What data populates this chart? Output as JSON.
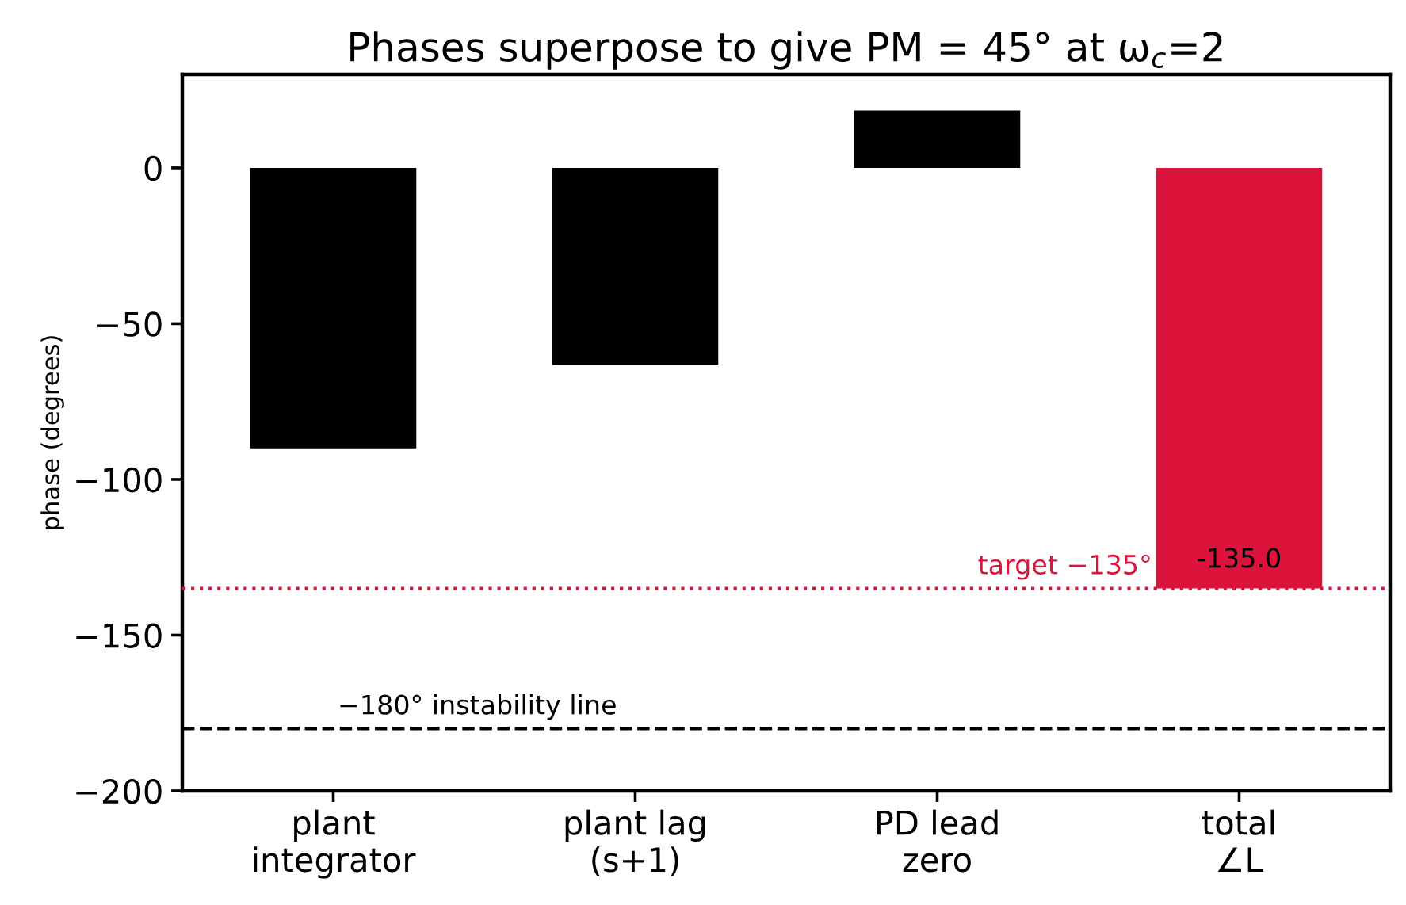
{
  "chart_data": {
    "type": "bar",
    "title": "Phases superpose to give PM = 45° at ω$_{c}$=2",
    "ylabel": "phase (degrees)",
    "categories": [
      "plant\nintegrator",
      "plant lag\n(s+1)",
      "PD lead\nzero",
      "total\n∠L"
    ],
    "values": [
      -90,
      -63.4,
      18.4,
      -135.0
    ],
    "colors": [
      "#000000",
      "#000000",
      "#000000",
      "#dc143c"
    ],
    "value_labels": [
      null,
      null,
      null,
      "-135.0"
    ],
    "ylim": [
      -200,
      30
    ],
    "yticks": [
      0,
      {
        "value": -50,
        "label": "−50"
      },
      {
        "value": -100,
        "label": "−100"
      },
      {
        "value": -150,
        "label": "−150"
      },
      {
        "value": -200,
        "label": "−200"
      }
    ],
    "ref_lines": [
      {
        "axis": "y",
        "value": -180,
        "label": "−180° instability line",
        "color": "#000000",
        "line_style": "dashed"
      },
      {
        "axis": "y",
        "value": -135,
        "label": "target −135°",
        "color": "#dc143c",
        "line_style": "dotted"
      }
    ]
  }
}
